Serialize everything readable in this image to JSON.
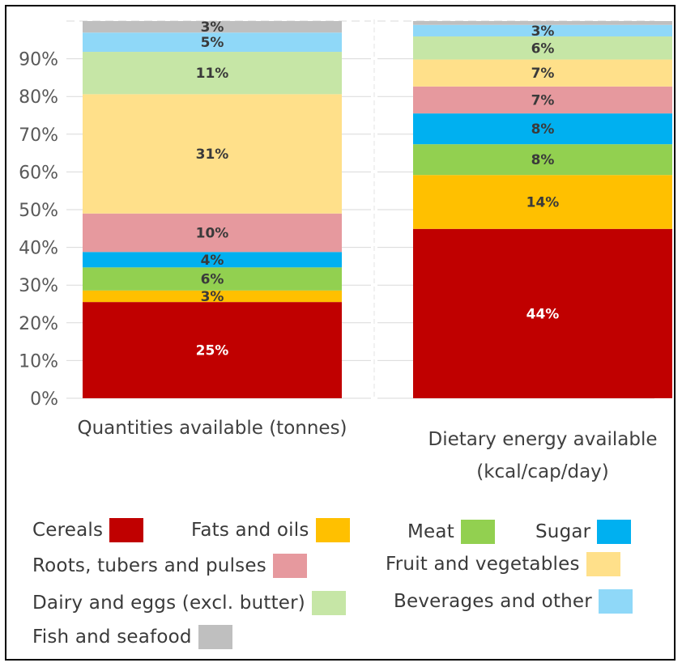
{
  "chart_data": {
    "type": "bar",
    "stacked": true,
    "normalized": true,
    "categories": [
      "Quantities available (tonnes)",
      "Dietary energy available|(kcal/cap/day)"
    ],
    "ylim": [
      0,
      100
    ],
    "yticks": [
      0,
      10,
      20,
      30,
      40,
      50,
      60,
      70,
      80,
      90
    ],
    "ytick_labels": [
      "0%",
      "10%",
      "20%",
      "30%",
      "40%",
      "50%",
      "60%",
      "70%",
      "80%",
      "90%"
    ],
    "grid": true,
    "legend": "bottom",
    "series": [
      {
        "name": "Cereals",
        "color": "#c00000",
        "values": [
          25,
          44
        ],
        "labels": [
          "25%",
          "44%"
        ],
        "label_color": "#ffffff"
      },
      {
        "name": "Fats and oils",
        "color": "#ffc000",
        "values": [
          3,
          14
        ],
        "labels": [
          "3%",
          "14%"
        ],
        "label_color": "#3a3a3a"
      },
      {
        "name": "Meat",
        "color": "#92d050",
        "values": [
          6,
          8
        ],
        "labels": [
          "6%",
          "8%"
        ],
        "label_color": "#3a3a3a"
      },
      {
        "name": "Sugar",
        "color": "#00b0f0",
        "values": [
          4,
          8
        ],
        "labels": [
          "4%",
          "8%"
        ],
        "label_color": "#3a3a3a"
      },
      {
        "name": "Roots, tubers and pulses",
        "color": "#e6999e",
        "values": [
          10,
          7
        ],
        "labels": [
          "10%",
          "7%"
        ],
        "label_color": "#3a3a3a"
      },
      {
        "name": "Fruit and vegetables",
        "color": "#ffe08a",
        "values": [
          31,
          7
        ],
        "labels": [
          "31%",
          "7%"
        ],
        "label_color": "#3a3a3a"
      },
      {
        "name": "Dairy and eggs (excl. butter)",
        "color": "#c6e6a6",
        "values": [
          11,
          6
        ],
        "labels": [
          "11%",
          "6%"
        ],
        "label_color": "#3a3a3a"
      },
      {
        "name": "Beverages and other",
        "color": "#8fd8f8",
        "values": [
          5,
          3
        ],
        "labels": [
          "5%",
          "3%"
        ],
        "label_color": "#3a3a3a"
      },
      {
        "name": "Fish and seafood",
        "color": "#bfbfbf",
        "values": [
          3,
          1
        ],
        "labels": [
          "3%",
          ""
        ],
        "label_color": "#3a3a3a"
      }
    ]
  }
}
